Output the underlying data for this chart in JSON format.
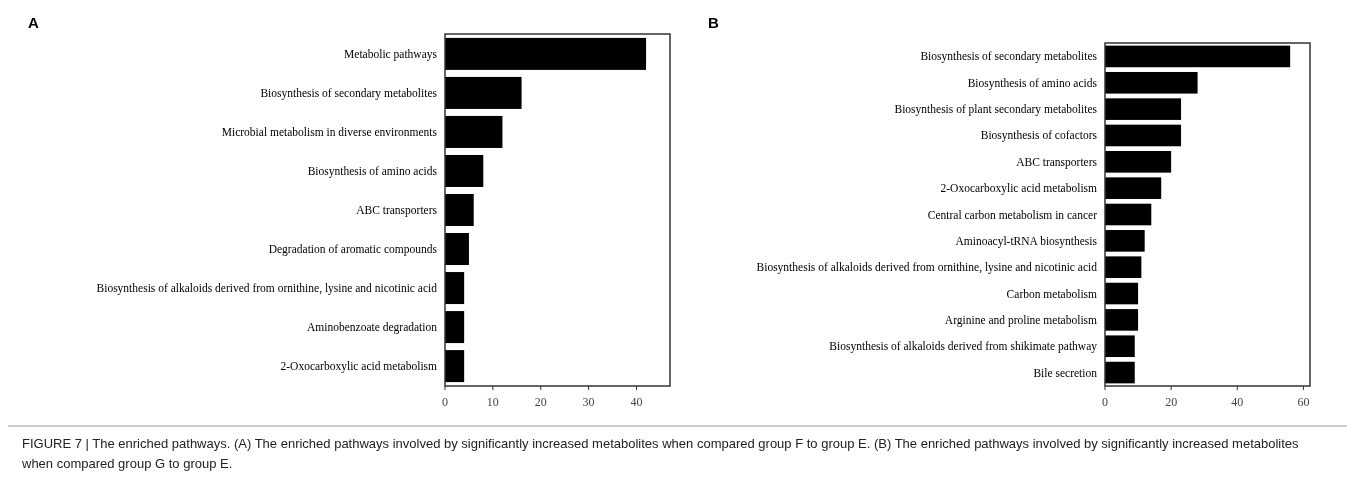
{
  "chart_data": [
    {
      "type": "bar",
      "title": "A",
      "orientation": "horizontal",
      "categories": [
        "Metabolic pathways",
        "Biosynthesis of secondary metabolites",
        "Microbial metabolism in diverse environments",
        "Biosynthesis of amino acids",
        "ABC transporters",
        "Degradation of aromatic compounds",
        "Biosynthesis of alkaloids derived from ornithine, lysine and nicotinic acid",
        "Aminobenzoate degradation",
        "2-Oxocarboxylic acid metabolism"
      ],
      "values": [
        42,
        16,
        12,
        8,
        6,
        5,
        4,
        4,
        4
      ],
      "color": "#000000",
      "xlim": [
        0,
        47
      ],
      "xticks": [
        0,
        10,
        20,
        30,
        40
      ],
      "grid": false,
      "annotations": [
        "FIGURE 7 | The enriched pathways. (A) The enriched pathways involved by significantly increased metabolites when compared group F to group E. (B) The enriched pathways involved by significantly increased metabolites when compared group G to group E."
      ]
    },
    {
      "type": "bar",
      "title": "B",
      "orientation": "horizontal",
      "categories": [
        "Biosynthesis of secondary metabolites",
        "Biosynthesis of amino acids",
        "Biosynthesis of plant secondary metabolites",
        "Biosynthesis of cofactors",
        "ABC transporters",
        "2-Oxocarboxylic acid metabolism",
        "Central carbon metabolism in cancer",
        "Aminoacyl-tRNA biosynthesis",
        "Biosynthesis of alkaloids derived from ornithine, lysine and nicotinic acid",
        "Carbon metabolism",
        "Arginine and proline metabolism",
        "Biosynthesis of alkaloids derived from shikimate pathway",
        "Bile secretion"
      ],
      "values": [
        56,
        28,
        23,
        23,
        20,
        17,
        14,
        12,
        11,
        10,
        10,
        9,
        9
      ],
      "color": "#000000",
      "xlim": [
        0,
        62
      ],
      "xticks": [
        0,
        20,
        40,
        60
      ],
      "grid": false
    }
  ]
}
